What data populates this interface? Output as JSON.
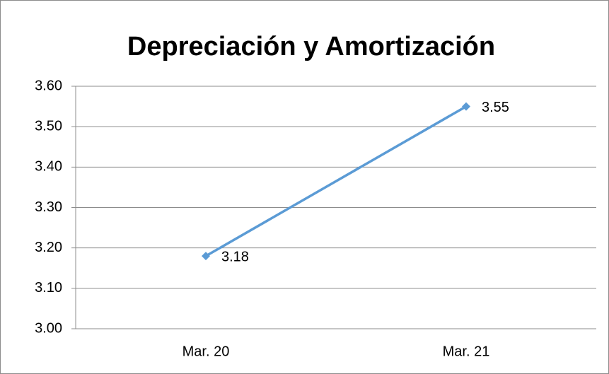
{
  "chart_data": {
    "type": "line",
    "title": "Depreciación y Amortización",
    "categories": [
      "Mar. 20",
      "Mar. 21"
    ],
    "series": [
      {
        "name": "Depreciación y Amortización",
        "color": "#5b9bd5",
        "values": [
          3.18,
          3.55
        ]
      }
    ],
    "ylim": [
      3.0,
      3.6
    ],
    "yticks": [
      {
        "value": 3.0,
        "label": "3.00"
      },
      {
        "value": 3.1,
        "label": "3.10"
      },
      {
        "value": 3.2,
        "label": "3.20"
      },
      {
        "value": 3.3,
        "label": "3.30"
      },
      {
        "value": 3.4,
        "label": "3.40"
      },
      {
        "value": 3.5,
        "label": "3.50"
      },
      {
        "value": 3.6,
        "label": "3.60"
      }
    ],
    "grid": true,
    "data_labels": true
  }
}
